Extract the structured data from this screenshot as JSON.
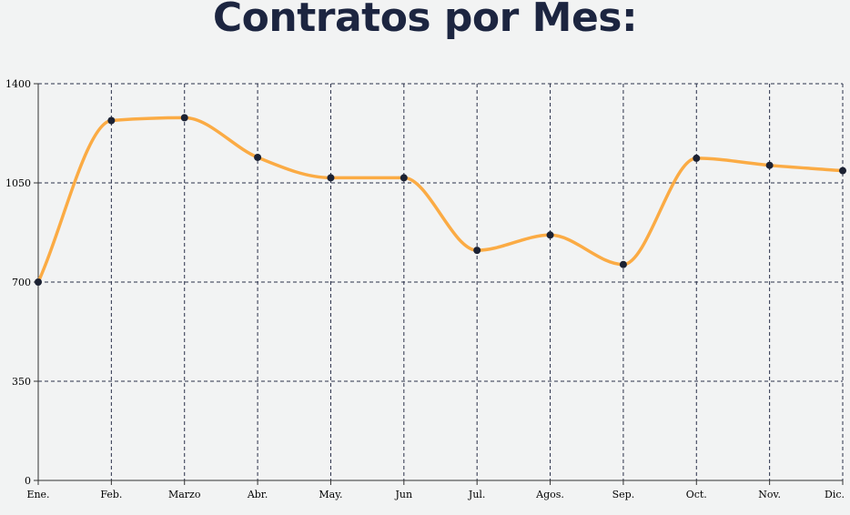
{
  "title": "Contratos por Mes:",
  "colors": {
    "line": "#fbab44",
    "point": "#1c2233",
    "grid": "#2a3049",
    "background": "#f2f3f3",
    "title": "#1c2540"
  },
  "chart_data": {
    "type": "line",
    "title": "Contratos por Mes:",
    "xlabel": "",
    "ylabel": "",
    "categories": [
      "Ene.",
      "Feb.",
      "Marzo",
      "Abr.",
      "May.",
      "Jun",
      "Jul.",
      "Agos.",
      "Sep.",
      "Oct.",
      "Nov.",
      "Dic."
    ],
    "series": [
      {
        "values": [
          700,
          1270,
          1280,
          1140,
          1068,
          1068,
          812,
          866,
          762,
          1137,
          1112,
          1093
        ]
      }
    ],
    "ylim": [
      0,
      1400
    ],
    "yticks": [
      0,
      350,
      700,
      1050,
      1400
    ],
    "curve": "smooth",
    "grid": true,
    "legend": "none"
  }
}
